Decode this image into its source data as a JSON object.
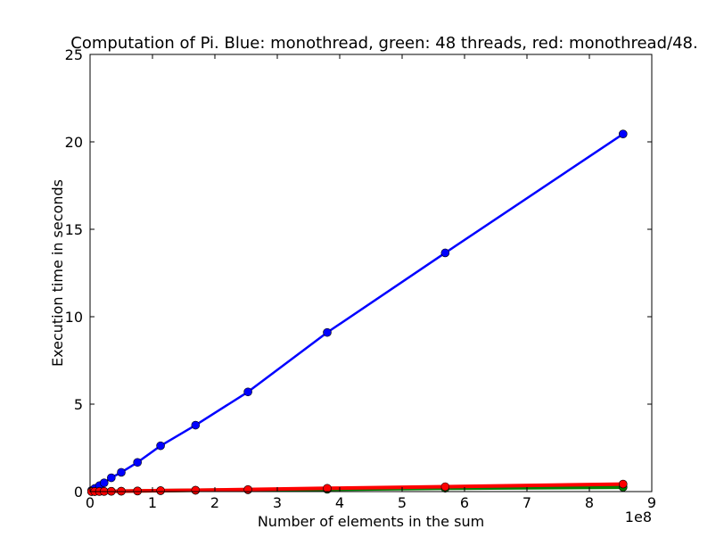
{
  "chart_data": {
    "type": "line",
    "title": "Computation of Pi. Blue: monothread, green: 48 threads, red: monothread/48.",
    "xlabel": "Number of elements in the sum",
    "ylabel": "Execution time in seconds",
    "x_offset_label": "1e8",
    "xlim": [
      0,
      9
    ],
    "ylim": [
      0,
      25
    ],
    "xticks": [
      0,
      1,
      2,
      3,
      4,
      5,
      6,
      7,
      8,
      9
    ],
    "yticks": [
      0,
      5,
      10,
      15,
      20,
      25
    ],
    "grid": false,
    "series": [
      {
        "color": "#0000ff",
        "marker": "circle",
        "x": [
          0.025,
          0.075,
          0.15,
          0.225,
          0.34,
          0.5,
          0.76,
          1.13,
          1.69,
          2.53,
          3.8,
          5.69,
          8.54
        ],
        "y": [
          0.06,
          0.18,
          0.34,
          0.5,
          0.79,
          1.1,
          1.67,
          2.62,
          3.8,
          5.7,
          9.1,
          13.65,
          20.45
        ]
      },
      {
        "color": "#008000",
        "marker": "circle",
        "x": [
          0.025,
          0.075,
          0.15,
          0.225,
          0.34,
          0.5,
          0.76,
          1.13,
          1.69,
          2.53,
          3.8,
          5.69,
          8.54
        ],
        "y": [
          0.002,
          0.005,
          0.008,
          0.012,
          0.017,
          0.024,
          0.036,
          0.053,
          0.075,
          0.1,
          0.13,
          0.19,
          0.25
        ]
      },
      {
        "color": "#ff0000",
        "marker": "circle",
        "x": [
          0.025,
          0.075,
          0.15,
          0.225,
          0.34,
          0.5,
          0.76,
          1.13,
          1.69,
          2.53,
          3.8,
          5.69,
          8.54
        ],
        "y": [
          0.001,
          0.004,
          0.007,
          0.01,
          0.016,
          0.023,
          0.035,
          0.055,
          0.079,
          0.119,
          0.19,
          0.28,
          0.43
        ]
      }
    ]
  }
}
